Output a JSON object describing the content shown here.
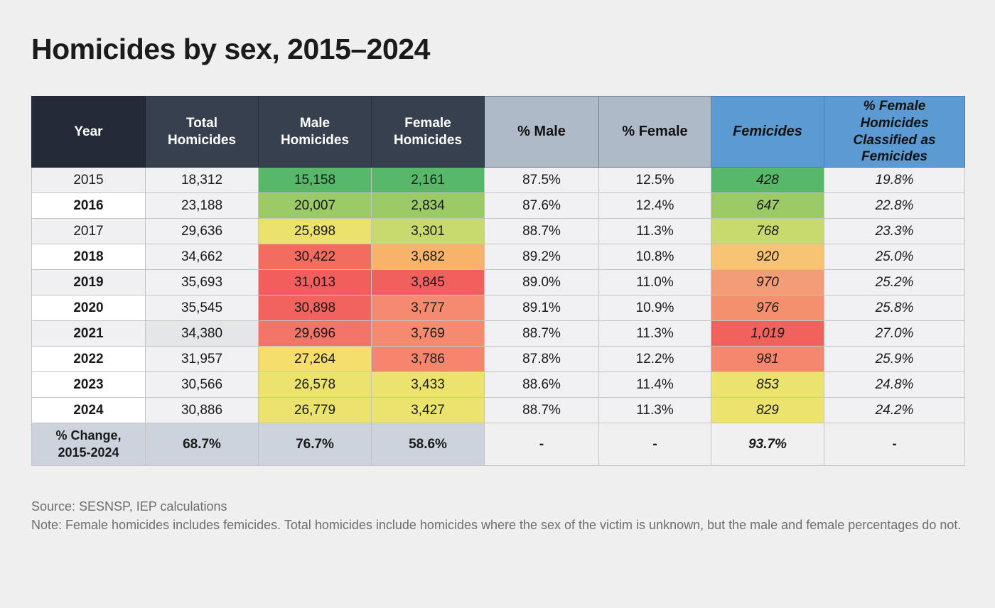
{
  "title": "Homicides by sex, 2015–2024",
  "colors": {
    "page_bg": "#EFEFEF",
    "header_dark": "#36404E",
    "header_year_dark": "#242B38",
    "header_gray": "#AFBAC9",
    "header_blue": "#5B9AD3",
    "body_cell_bg": "#F1F1F3",
    "year_shaded_bg": "#F0F0F2",
    "total_2021_bg": "#E4E6E9",
    "change_left_bg": "#CDD3DC",
    "change_right_bg": "#F0F0F1",
    "heat_green": "#57B869",
    "heat_light_green": "#9BCA66",
    "heat_yellow_green": "#C8D96E",
    "heat_yellow": "#EBE36E",
    "heat_orange": "#F6B369",
    "heat_salmon": "#F58A6E",
    "heat_red": "#F2605E"
  },
  "chart_data": {
    "type": "table",
    "title": "Homicides by sex, 2015–2024",
    "columns": [
      "Year",
      "Total\nHomicides",
      "Male\nHomicides",
      "Female\nHomicides",
      "% Male",
      "% Female",
      "Femicides",
      "% Female\nHomicides\nClassified as\nFemicides"
    ],
    "rows": [
      {
        "year": "2015",
        "total": "18,312",
        "male": "15,158",
        "female": "2,161",
        "pct_male": "87.5%",
        "pct_female": "12.5%",
        "femicides": "428",
        "pct_femicides": "19.8%",
        "year_bold": false,
        "year_shaded": true,
        "total_dark": false,
        "male_color": "#57B869",
        "female_color": "#57B869",
        "femicides_color": "#57B869"
      },
      {
        "year": "2016",
        "total": "23,188",
        "male": "20,007",
        "female": "2,834",
        "pct_male": "87.6%",
        "pct_female": "12.4%",
        "femicides": "647",
        "pct_femicides": "22.8%",
        "year_bold": true,
        "year_shaded": false,
        "total_dark": false,
        "male_color": "#9BCA66",
        "female_color": "#9BCA66",
        "femicides_color": "#9BCA66"
      },
      {
        "year": "2017",
        "total": "29,636",
        "male": "25,898",
        "female": "3,301",
        "pct_male": "88.7%",
        "pct_female": "11.3%",
        "femicides": "768",
        "pct_femicides": "23.3%",
        "year_bold": false,
        "year_shaded": true,
        "total_dark": false,
        "male_color": "#EBE26E",
        "female_color": "#C8D96E",
        "femicides_color": "#C8D96E"
      },
      {
        "year": "2018",
        "total": "34,662",
        "male": "30,422",
        "female": "3,682",
        "pct_male": "89.2%",
        "pct_female": "10.8%",
        "femicides": "920",
        "pct_femicides": "25.0%",
        "year_bold": true,
        "year_shaded": false,
        "total_dark": false,
        "male_color": "#F26C60",
        "female_color": "#F6B369",
        "femicides_color": "#F8C372"
      },
      {
        "year": "2019",
        "total": "35,693",
        "male": "31,013",
        "female": "3,845",
        "pct_male": "89.0%",
        "pct_female": "11.0%",
        "femicides": "970",
        "pct_femicides": "25.2%",
        "year_bold": true,
        "year_shaded": true,
        "total_dark": false,
        "male_color": "#F25E5C",
        "female_color": "#F2605E",
        "femicides_color": "#F49B78"
      },
      {
        "year": "2020",
        "total": "35,545",
        "male": "30,898",
        "female": "3,777",
        "pct_male": "89.1%",
        "pct_female": "10.9%",
        "femicides": "976",
        "pct_femicides": "25.8%",
        "year_bold": true,
        "year_shaded": false,
        "total_dark": false,
        "male_color": "#F2625E",
        "female_color": "#F58A6E",
        "femicides_color": "#F5906F"
      },
      {
        "year": "2021",
        "total": "34,380",
        "male": "29,696",
        "female": "3,769",
        "pct_male": "88.7%",
        "pct_female": "11.3%",
        "femicides": "1,019",
        "pct_femicides": "27.0%",
        "year_bold": true,
        "year_shaded": true,
        "total_dark": true,
        "male_color": "#F37569",
        "female_color": "#F58A6E",
        "femicides_color": "#F2615E"
      },
      {
        "year": "2022",
        "total": "31,957",
        "male": "27,264",
        "female": "3,786",
        "pct_male": "87.8%",
        "pct_female": "12.2%",
        "femicides": "981",
        "pct_femicides": "25.9%",
        "year_bold": true,
        "year_shaded": false,
        "total_dark": false,
        "male_color": "#F6DE6C",
        "female_color": "#F5866B",
        "femicides_color": "#F5876C"
      },
      {
        "year": "2023",
        "total": "30,566",
        "male": "26,578",
        "female": "3,433",
        "pct_male": "88.6%",
        "pct_female": "11.4%",
        "femicides": "853",
        "pct_femicides": "24.8%",
        "year_bold": true,
        "year_shaded": false,
        "total_dark": false,
        "male_color": "#EBE36E",
        "female_color": "#EBE36E",
        "femicides_color": "#EBE36E"
      },
      {
        "year": "2024",
        "total": "30,886",
        "male": "26,779",
        "female": "3,427",
        "pct_male": "88.7%",
        "pct_female": "11.3%",
        "femicides": "829",
        "pct_femicides": "24.2%",
        "year_bold": true,
        "year_shaded": false,
        "total_dark": false,
        "male_color": "#EBE36E",
        "female_color": "#EBE36E",
        "femicides_color": "#EBE36E"
      }
    ],
    "change_row": {
      "label": "% Change,\n2015-2024",
      "total": "68.7%",
      "male": "76.7%",
      "female": "58.6%",
      "pct_male": "-",
      "pct_female": "-",
      "femicides": "93.7%",
      "pct_femicides": "-"
    }
  },
  "footer": {
    "source": "Source: SESNSP, IEP calculations",
    "note": "Note: Female homicides includes femicides. Total homicides include homicides where the sex of the victim is unknown, but the male and female percentages do not."
  }
}
